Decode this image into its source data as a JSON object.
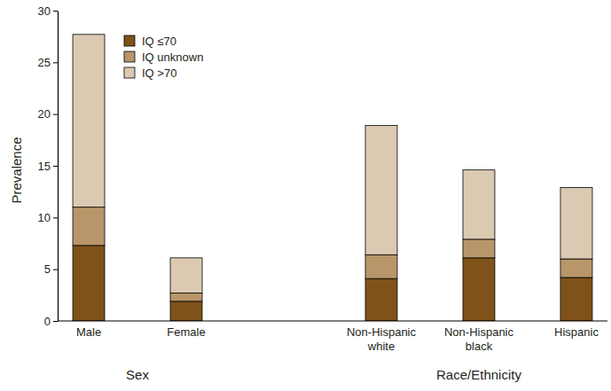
{
  "chart_data": {
    "type": "bar",
    "stacked": true,
    "categories": [
      "Male",
      "Female",
      null,
      "Non-Hispanic white",
      "Non-Hispanic black",
      "Hispanic"
    ],
    "series": [
      {
        "name": "IQ ≤70",
        "color": "#7f5219",
        "values": [
          7.3,
          1.9,
          null,
          4.1,
          6.1,
          4.2
        ]
      },
      {
        "name": "IQ unknown",
        "color": "#b8966a",
        "values": [
          3.7,
          0.8,
          null,
          2.3,
          1.8,
          1.8
        ]
      },
      {
        "name": "IQ >70",
        "color": "#dbcab1",
        "values": [
          16.7,
          3.4,
          null,
          12.5,
          6.7,
          6.9
        ]
      }
    ],
    "y_label": "Prevalence",
    "ylim": [
      0,
      30
    ],
    "yticks": [
      0,
      5,
      10,
      15,
      20,
      25,
      30
    ],
    "legend": "upper left",
    "groups": [
      {
        "label": "Sex",
        "categories": [
          "Male",
          "Female"
        ]
      },
      {
        "label": "Race/Ethnicity",
        "categories": [
          "Non-Hispanic white",
          "Non-Hispanic black",
          "Hispanic"
        ]
      }
    ]
  }
}
